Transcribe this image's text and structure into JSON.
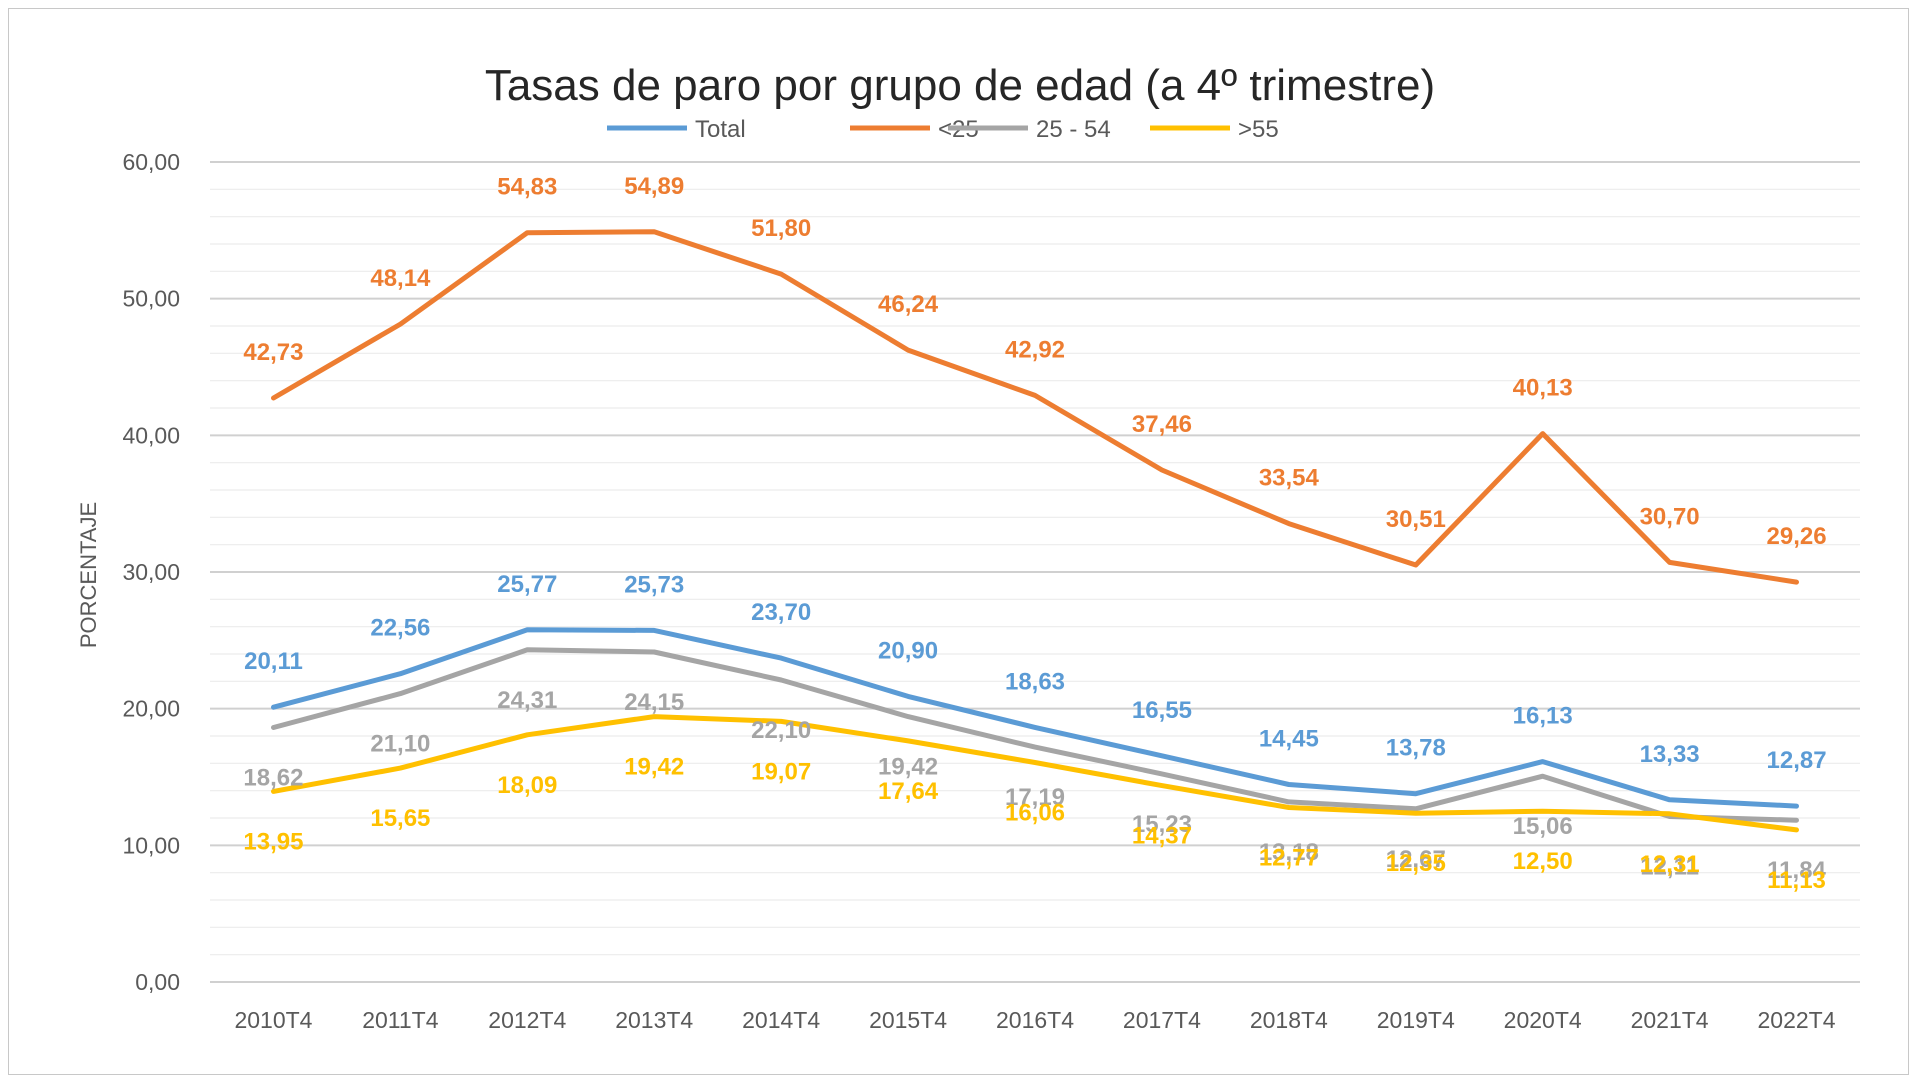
{
  "chart_data": {
    "type": "line",
    "title": "Tasas de paro por grupo de edad (a 4º trimestre)",
    "xlabel": "",
    "ylabel": "PORCENTAJE",
    "ylim": [
      0,
      60
    ],
    "yticks": [
      0,
      10,
      20,
      30,
      40,
      50,
      60
    ],
    "ytick_labels": [
      "0,00",
      "10,00",
      "20,00",
      "30,00",
      "40,00",
      "50,00",
      "60,00"
    ],
    "grid": true,
    "legend": "top-center",
    "categories": [
      "2010T4",
      "2011T4",
      "2012T4",
      "2013T4",
      "2014T4",
      "2015T4",
      "2016T4",
      "2017T4",
      "2018T4",
      "2019T4",
      "2020T4",
      "2021T4",
      "2022T4"
    ],
    "series": [
      {
        "name": "Total",
        "color": "#5b9bd5",
        "values": [
          20.11,
          22.56,
          25.77,
          25.73,
          23.7,
          20.9,
          18.63,
          16.55,
          14.45,
          13.78,
          16.13,
          13.33,
          12.87
        ],
        "labels": [
          "20,11",
          "22,56",
          "25,77",
          "25,73",
          "23,70",
          "20,90",
          "18,63",
          "16,55",
          "14,45",
          "13,78",
          "16,13",
          "13,33",
          "12,87"
        ]
      },
      {
        "name": "<25",
        "color": "#ed7d31",
        "values": [
          42.73,
          48.14,
          54.83,
          54.89,
          51.8,
          46.24,
          42.92,
          37.46,
          33.54,
          30.51,
          40.13,
          30.7,
          29.26
        ],
        "labels": [
          "42,73",
          "48,14",
          "54,83",
          "54,89",
          "51,80",
          "46,24",
          "42,92",
          "37,46",
          "33,54",
          "30,51",
          "40,13",
          "30,70",
          "29,26"
        ]
      },
      {
        "name": "25 - 54",
        "color": "#a5a5a5",
        "values": [
          18.62,
          21.1,
          24.31,
          24.15,
          22.1,
          19.42,
          17.19,
          15.23,
          13.18,
          12.67,
          15.06,
          12.11,
          11.84
        ],
        "labels": [
          "18,62",
          "21,10",
          "24,31",
          "24,15",
          "22,10",
          "19,42",
          "17,19",
          "15,23",
          "13,18",
          "12,67",
          "15,06",
          "12,11",
          "11,84"
        ]
      },
      {
        "name": ">55",
        "color": "#ffc000",
        "values": [
          13.95,
          15.65,
          18.09,
          19.42,
          19.07,
          17.64,
          16.06,
          14.37,
          12.77,
          12.35,
          12.5,
          12.31,
          11.13
        ],
        "labels": [
          "13,95",
          "15,65",
          "18,09",
          "19,42",
          "19,07",
          "17,64",
          "16,06",
          "14,37",
          "12,77",
          "12,35",
          "12,50",
          "12,31",
          "11,13"
        ]
      }
    ]
  }
}
